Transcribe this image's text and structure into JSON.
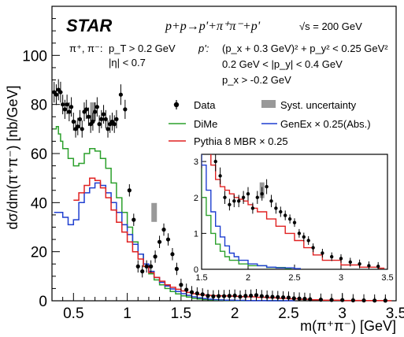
{
  "chart_data": {
    "type": "line",
    "xlabel": "m(π⁺π⁻) [GeV]",
    "ylabel": "dσ/dm(π⁺π⁻) [nb/GeV]",
    "xlim": [
      0.3,
      3.5
    ],
    "ylim": [
      0,
      120
    ],
    "x_ticks": [
      "0.5",
      "1",
      "1.5",
      "2",
      "2.5",
      "3",
      "3.5"
    ],
    "y_ticks": [
      "0",
      "20",
      "40",
      "60",
      "80",
      "100"
    ],
    "title": "STAR",
    "process": "p+p→p'+π⁺π⁻+p'",
    "energy": "√s = 200 GeV",
    "cuts_left": [
      "π⁺, π⁻:",
      "p_T > 0.2 GeV",
      "|η| < 0.7"
    ],
    "cuts_right": [
      "p':",
      "(p_x + 0.3 GeV)² + p_y² < 0.25 GeV²",
      "0.2 GeV < |p_y| < 0.4 GeV",
      "p_x > -0.2 GeV"
    ],
    "legend": [
      "Data",
      "Syst. uncertainty",
      "DiMe",
      "GenEx × 0.25(Abs.)",
      "Pythia 8 MBR × 0.25"
    ],
    "colors": {
      "dime": "#2ca02c",
      "genex": "#1f3fd0",
      "pythia": "#e02020",
      "data": "#000000",
      "syst": "#999999"
    },
    "data": {
      "x": [
        0.32,
        0.34,
        0.36,
        0.38,
        0.4,
        0.42,
        0.44,
        0.46,
        0.48,
        0.5,
        0.52,
        0.54,
        0.56,
        0.58,
        0.6,
        0.62,
        0.64,
        0.66,
        0.68,
        0.7,
        0.72,
        0.74,
        0.76,
        0.78,
        0.8,
        0.82,
        0.84,
        0.86,
        0.88,
        0.9,
        0.94,
        0.98,
        1.02,
        1.06,
        1.1,
        1.14,
        1.18,
        1.22,
        1.26,
        1.3,
        1.34,
        1.38,
        1.42,
        1.46,
        1.5,
        1.55,
        1.6,
        1.65,
        1.7,
        1.75,
        1.8,
        1.85,
        1.9,
        1.95,
        2.0,
        2.05,
        2.1,
        2.15,
        2.2,
        2.25,
        2.3,
        2.35,
        2.4,
        2.45,
        2.5,
        2.55,
        2.6,
        2.65,
        2.7,
        2.8,
        2.9,
        3.0,
        3.1,
        3.2,
        3.3,
        3.4
      ],
      "y": [
        85,
        84,
        86,
        85,
        80,
        78,
        80,
        77,
        79,
        73,
        70,
        71,
        74,
        70,
        77,
        78,
        75,
        72,
        73,
        77,
        79,
        72,
        74,
        76,
        74,
        70,
        72,
        73,
        72,
        74,
        84,
        78,
        45,
        33,
        14,
        12,
        14,
        14,
        18,
        24,
        29,
        25,
        19,
        13,
        6.5,
        4.5,
        3.5,
        3.0,
        2.6,
        2.0,
        1.8,
        1.9,
        1.9,
        2.0,
        2.1,
        1.7,
        2.0,
        2.1,
        2.3,
        1.9,
        1.7,
        1.6,
        1.5,
        1.4,
        1.3,
        1.0,
        0.9,
        0.8,
        0.6,
        0.45,
        0.35,
        0.3,
        0.2,
        0.15,
        0.1,
        0.08
      ]
    },
    "syst_boxes": [
      {
        "x": 0.68,
        "y": 77
      },
      {
        "x": 1.25,
        "y": 36
      },
      {
        "x": 2.15,
        "y": 2.2
      }
    ],
    "dime": {
      "x": [
        0.32,
        0.34,
        0.36,
        0.38,
        0.4,
        0.45,
        0.5,
        0.55,
        0.6,
        0.65,
        0.7,
        0.75,
        0.8,
        0.85,
        0.9,
        0.95,
        1.0,
        1.05,
        1.1,
        1.15,
        1.2,
        1.25,
        1.3,
        1.35,
        1.4,
        1.45,
        1.5,
        1.55,
        1.6,
        1.65,
        1.7,
        1.75,
        1.8,
        1.9,
        2.0,
        2.2,
        2.4
      ],
      "y": [
        70,
        71,
        68,
        65,
        62,
        58,
        55,
        56,
        60,
        62,
        61,
        58,
        54,
        48,
        42,
        36,
        30,
        24,
        19,
        14,
        11,
        8.5,
        6.5,
        5.0,
        3.8,
        2.8,
        2.0,
        1.5,
        1.0,
        0.7,
        0.5,
        0.35,
        0.25,
        0.15,
        0.1,
        0.05,
        0.02
      ]
    },
    "genex": {
      "x": [
        0.32,
        0.35,
        0.4,
        0.45,
        0.5,
        0.55,
        0.6,
        0.65,
        0.7,
        0.75,
        0.8,
        0.85,
        0.9,
        0.95,
        1.0,
        1.05,
        1.1,
        1.15,
        1.2,
        1.25,
        1.3,
        1.35,
        1.4,
        1.45,
        1.5,
        1.55,
        1.6,
        1.65,
        1.7,
        1.75,
        1.8,
        1.85,
        1.9,
        2.0,
        2.1,
        2.2,
        2.3,
        2.5
      ],
      "y": [
        36,
        36,
        34,
        31,
        33,
        40,
        44,
        46,
        48,
        47,
        44,
        40,
        36,
        31,
        27,
        23,
        19,
        15,
        12,
        9.5,
        7.5,
        6,
        4.8,
        3.8,
        2.9,
        2.2,
        1.6,
        1.2,
        0.9,
        0.65,
        0.45,
        0.35,
        0.25,
        0.15,
        0.1,
        0.06,
        0.04,
        0.02
      ]
    },
    "pythia": {
      "x": [
        0.5,
        0.55,
        0.6,
        0.65,
        0.7,
        0.75,
        0.8,
        0.85,
        0.9,
        0.95,
        1.0,
        1.05,
        1.1,
        1.15,
        1.2,
        1.25,
        1.3,
        1.35,
        1.4,
        1.45,
        1.5,
        1.55,
        1.6,
        1.65,
        1.7,
        1.75,
        1.8,
        1.85,
        1.9,
        1.95,
        2.0,
        2.05,
        2.1,
        2.2,
        2.3,
        2.4,
        2.5,
        2.6,
        2.7,
        2.8,
        3.0,
        3.2,
        3.4
      ],
      "y": [
        41,
        44,
        47,
        50,
        49,
        46,
        42,
        37,
        32,
        28,
        24,
        20,
        17,
        14,
        11.5,
        9.5,
        8,
        6.5,
        5.5,
        4.7,
        4.0,
        3.4,
        2.9,
        2.5,
        2.3,
        2.2,
        2.1,
        2.0,
        1.95,
        1.9,
        1.8,
        1.7,
        1.6,
        1.4,
        1.2,
        1.0,
        0.8,
        0.6,
        0.4,
        0.25,
        0.12,
        0.06,
        0.03
      ]
    },
    "inset": {
      "xlim": [
        1.5,
        3.5
      ],
      "ylim": [
        0,
        3.2
      ],
      "x_ticks": [
        "1.5",
        "2",
        "2.5",
        "3",
        "3.5"
      ],
      "y_ticks": [
        "0",
        "1",
        "2",
        "3"
      ]
    }
  }
}
